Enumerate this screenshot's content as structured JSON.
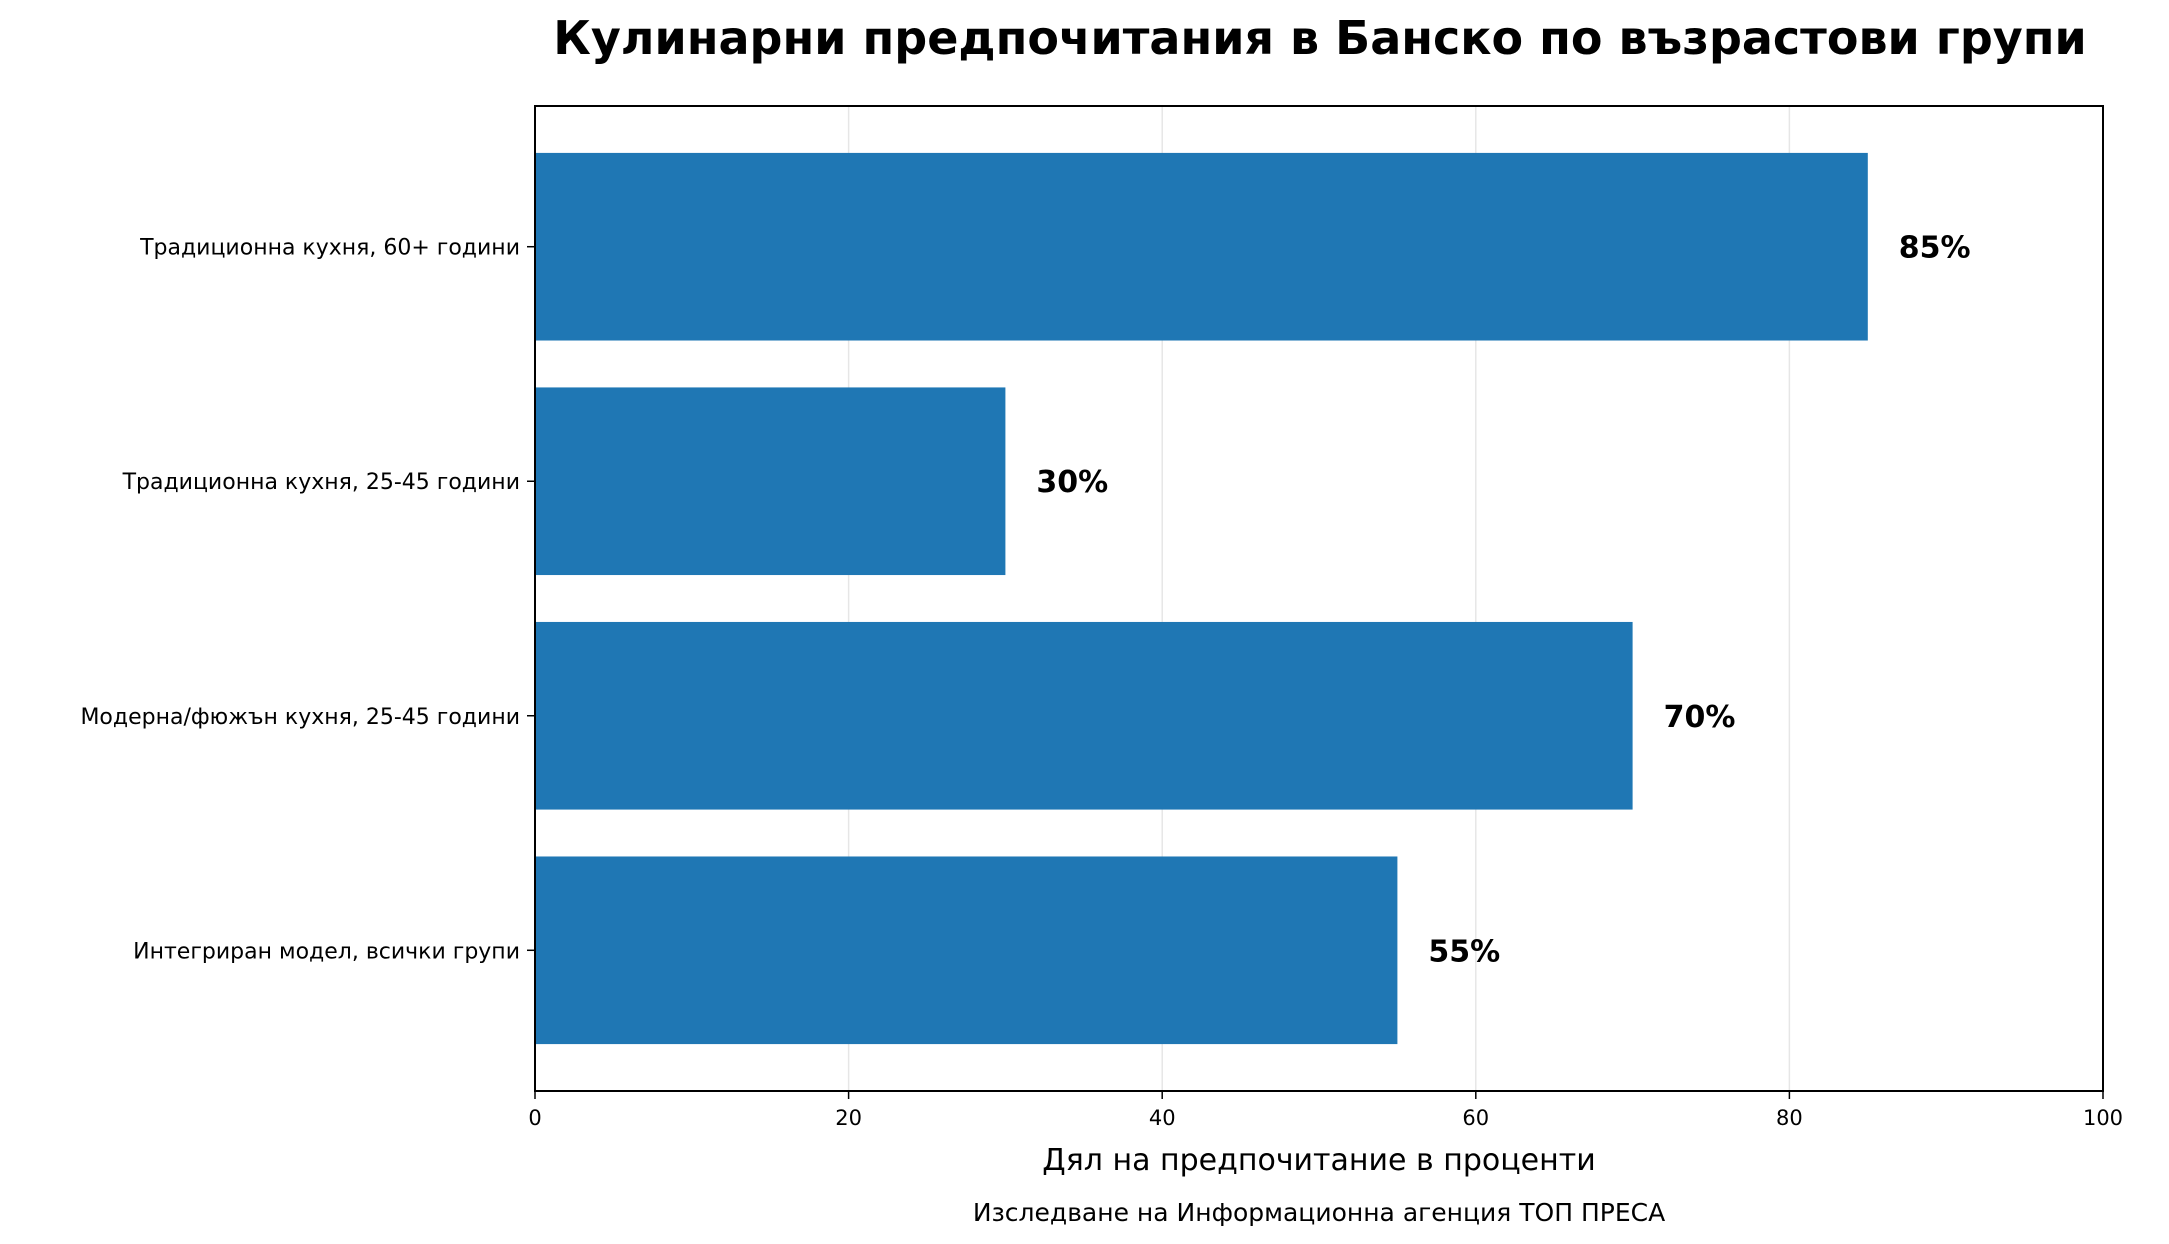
{
  "chart_data": {
    "type": "bar",
    "orientation": "horizontal",
    "title": "Кулинарни предпочитания в Банско по възрастови групи",
    "categories": [
      "Традиционна кухня, 60+ години",
      "Традиционна кухня, 25-45 години",
      "Модерна/фюжън кухня, 25-45 години",
      "Интегриран модел, всички групи"
    ],
    "values": [
      85,
      30,
      70,
      55
    ],
    "value_labels": [
      "85%",
      "30%",
      "70%",
      "55%"
    ],
    "xlabel": "Дял на предпочитание в проценти",
    "ylabel": "",
    "subtitle": "Изследване на Информационна агенция ТОП ПРЕСА",
    "xlim": [
      0,
      100
    ],
    "xticks": [
      0,
      20,
      40,
      60,
      80,
      100
    ],
    "xtick_labels": [
      "0",
      "20",
      "40",
      "60",
      "80",
      "100"
    ],
    "grid": true,
    "legend": "none",
    "bar_color": "#1f77b4",
    "grid_color": "#e6e6e6"
  }
}
